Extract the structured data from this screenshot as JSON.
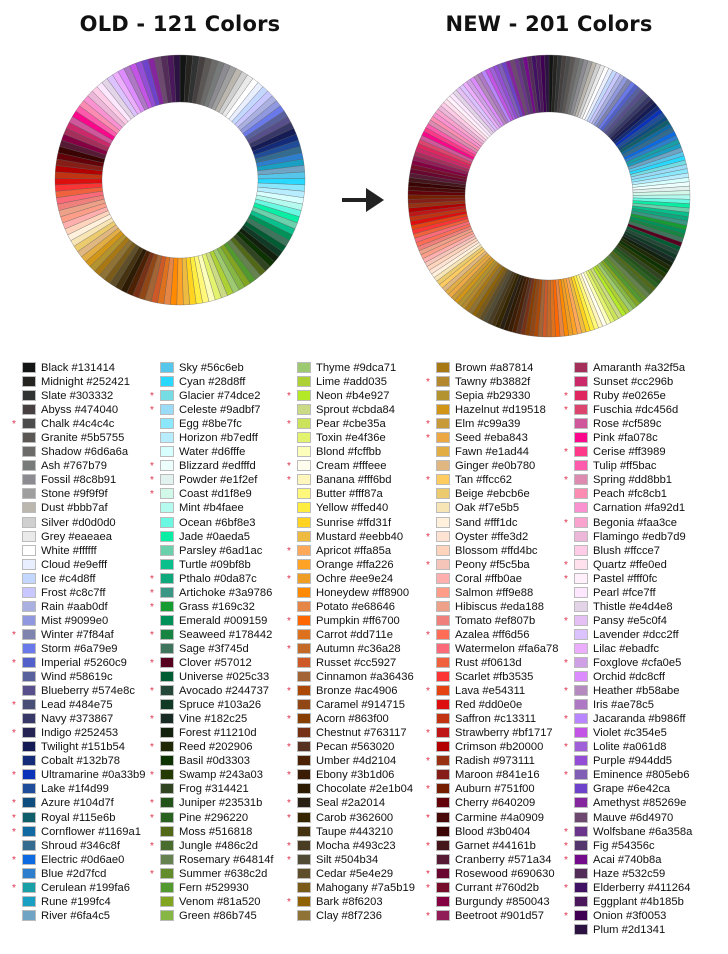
{
  "old_title": "OLD - 121 Colors",
  "new_title": "NEW - 201 Colors",
  "new_marker": "*",
  "marker_color": "#e0304a",
  "columns": [
    [
      [
        "Black",
        "#131414",
        0
      ],
      [
        "Midnight",
        "#252421",
        0
      ],
      [
        "Slate",
        "#303332",
        0
      ],
      [
        "Abyss",
        "#474040",
        0
      ],
      [
        "Chalk",
        "#4c4c4c",
        1
      ],
      [
        "Granite",
        "#5b5755",
        0
      ],
      [
        "Shadow",
        "#6d6a6a",
        0
      ],
      [
        "Ash",
        "#767b79",
        0
      ],
      [
        "Fossil",
        "#8c8b91",
        0
      ],
      [
        "Stone",
        "#9f9f9f",
        0
      ],
      [
        "Dust",
        "#bbb7af",
        0
      ],
      [
        "Silver",
        "#d0d0d0",
        0
      ],
      [
        "Grey",
        "#eaeaea",
        0
      ],
      [
        "White",
        "#ffffff",
        0
      ],
      [
        "Cloud",
        "#e9efff",
        0
      ],
      [
        "Ice",
        "#c4d8ff",
        0
      ],
      [
        "Frost",
        "#c8c7ff",
        0
      ],
      [
        "Rain",
        "#aab0df",
        0
      ],
      [
        "Mist",
        "#9099e0",
        0
      ],
      [
        "Winter",
        "#7f84af",
        1
      ],
      [
        "Storm",
        "#6a79e9",
        0
      ],
      [
        "Imperial",
        "#5260c9",
        1
      ],
      [
        "Wind",
        "#58619c",
        0
      ],
      [
        "Blueberry",
        "#574e8c",
        0
      ],
      [
        "Lead",
        "#484e75",
        1
      ],
      [
        "Navy",
        "#373867",
        0
      ],
      [
        "Indigo",
        "#252453",
        1
      ],
      [
        "Twilight",
        "#151b54",
        0
      ],
      [
        "Cobalt",
        "#132b78",
        0
      ],
      [
        "Ultramarine",
        "#0a33b9",
        1
      ],
      [
        "Lake",
        "#1f4d99",
        0
      ],
      [
        "Azure",
        "#104d7f",
        1
      ],
      [
        "Royal",
        "#115e6b",
        1
      ],
      [
        "Cornflower",
        "#1169a1",
        1
      ],
      [
        "Shroud",
        "#346c8f",
        0
      ],
      [
        "Electric",
        "#0d6ae0",
        1
      ],
      [
        "Blue",
        "#2d7fcd",
        0
      ],
      [
        "Cerulean",
        "#199fa6",
        1
      ],
      [
        "Rune",
        "#199fc4",
        0
      ],
      [
        "River",
        "#6fa4c5",
        0
      ]
    ],
    [
      [
        "Sky",
        "#56c6eb",
        0
      ],
      [
        "Cyan",
        "#28d8ff",
        0
      ],
      [
        "Glacier",
        "#74dce2",
        1
      ],
      [
        "Celeste",
        "#9adbf7",
        1
      ],
      [
        "Egg",
        "#8be7fc",
        0
      ],
      [
        "Horizon",
        "#b7edff",
        0
      ],
      [
        "Water",
        "#d6fffe",
        0
      ],
      [
        "Blizzard",
        "#edfffd",
        1
      ],
      [
        "Powder",
        "#e1f2ef",
        1
      ],
      [
        "Coast",
        "#d1f8e9",
        1
      ],
      [
        "Mint",
        "#b4faee",
        0
      ],
      [
        "Ocean",
        "#6bf8e3",
        0
      ],
      [
        "Jade",
        "#0aeda5",
        0
      ],
      [
        "Parsley",
        "#6ad1ac",
        0
      ],
      [
        "Turtle",
        "#09bf8b",
        0
      ],
      [
        "Pthalo",
        "#0da87c",
        1
      ],
      [
        "Artichoke",
        "#3a9786",
        1
      ],
      [
        "Grass",
        "#169c32",
        1
      ],
      [
        "Emerald",
        "#009159",
        0
      ],
      [
        "Seaweed",
        "#178442",
        1
      ],
      [
        "Sage",
        "#3f745d",
        0
      ],
      [
        "Clover",
        "#57012",
        1
      ],
      [
        "Universe",
        "#025c33",
        0
      ],
      [
        "Avocado",
        "#244737",
        1
      ],
      [
        "Spruce",
        "#103a26",
        0
      ],
      [
        "Vine",
        "#182c25",
        1
      ],
      [
        "Forest",
        "#11210d",
        0
      ],
      [
        "Reed",
        "#202906",
        1
      ],
      [
        "Basil",
        "#0d3303",
        0
      ],
      [
        "Swamp",
        "#243a03",
        1
      ],
      [
        "Frog",
        "#314421",
        0
      ],
      [
        "Juniper",
        "#23531b",
        1
      ],
      [
        "Pine",
        "#296220",
        1
      ],
      [
        "Moss",
        "#516818",
        0
      ],
      [
        "Jungle",
        "#486c2d",
        1
      ],
      [
        "Rosemary",
        "#64814f",
        0
      ],
      [
        "Summer",
        "#638c2d",
        1
      ],
      [
        "Fern",
        "#529930",
        0
      ],
      [
        "Venom",
        "#81a520",
        0
      ],
      [
        "Green",
        "#86b745",
        0
      ]
    ],
    [
      [
        "Thyme",
        "#9dca71",
        0
      ],
      [
        "Lime",
        "#add035",
        0
      ],
      [
        "Neon",
        "#b4e927",
        1
      ],
      [
        "Sprout",
        "#cbda84",
        0
      ],
      [
        "Pear",
        "#cbe35a",
        1
      ],
      [
        "Toxin",
        "#e4f36e",
        0
      ],
      [
        "Blond",
        "#fcffbb",
        0
      ],
      [
        "Cream",
        "#fffeee",
        1
      ],
      [
        "Banana",
        "#fff6bd",
        1
      ],
      [
        "Butter",
        "#fff87a",
        0
      ],
      [
        "Yellow",
        "#ffed40",
        0
      ],
      [
        "Sunrise",
        "#ffd31f",
        0
      ],
      [
        "Mustard",
        "#eebb40",
        0
      ],
      [
        "Apricot",
        "#ffa85a",
        1
      ],
      [
        "Orange",
        "#ffa226",
        0
      ],
      [
        "Ochre",
        "#ee9e24",
        1
      ],
      [
        "Honeydew",
        "#ff8900",
        0
      ],
      [
        "Potato",
        "#e68646",
        0
      ],
      [
        "Pumpkin",
        "#ff6700",
        1
      ],
      [
        "Carrot",
        "#dd711e",
        0
      ],
      [
        "Autumn",
        "#c36a28",
        1
      ],
      [
        "Russet",
        "#cc5927",
        0
      ],
      [
        "Cinnamon",
        "#a36436",
        0
      ],
      [
        "Bronze",
        "#ac4906",
        1
      ],
      [
        "Caramel",
        "#914715",
        0
      ],
      [
        "Acorn",
        "#863f00",
        1
      ],
      [
        "Chestnut",
        "#763117",
        0
      ],
      [
        "Pecan",
        "#563020",
        1
      ],
      [
        "Umber",
        "#4d2104",
        0
      ],
      [
        "Ebony",
        "#3b1d06",
        1
      ],
      [
        "Chocolate",
        "#2e1b04",
        0
      ],
      [
        "Seal",
        "#2a2014",
        1
      ],
      [
        "Carob",
        "#362600",
        1
      ],
      [
        "Taupe",
        "#443210",
        0
      ],
      [
        "Mocha",
        "#493c23",
        1
      ],
      [
        "Silt",
        "#504b34",
        1
      ],
      [
        "Cedar",
        "#5e4e29",
        0
      ],
      [
        "Mahogany",
        "#7a5b19",
        0
      ],
      [
        "Bark",
        "#8f6203",
        1
      ],
      [
        "Clay",
        "#8f7236",
        0
      ]
    ],
    [
      [
        "Brown",
        "#a87814",
        0
      ],
      [
        "Tawny",
        "#b3882f",
        1
      ],
      [
        "Sepia",
        "#b29330",
        0
      ],
      [
        "Hazelnut",
        "#d19518",
        0
      ],
      [
        "Elm",
        "#c99a39",
        1
      ],
      [
        "Seed",
        "#eba843",
        1
      ],
      [
        "Fawn",
        "#e1ad44",
        0
      ],
      [
        "Ginger",
        "#e0b780",
        0
      ],
      [
        "Tan",
        "#ffcc62",
        1
      ],
      [
        "Beige",
        "#ebcb6e",
        0
      ],
      [
        "Oak",
        "#f7e5b5",
        0
      ],
      [
        "Sand",
        "#fff1dc",
        0
      ],
      [
        "Oyster",
        "#ffe3d2",
        1
      ],
      [
        "Blossom",
        "#ffd4bc",
        0
      ],
      [
        "Peony",
        "#f5c5ba",
        1
      ],
      [
        "Coral",
        "#ffb0ae",
        0
      ],
      [
        "Salmon",
        "#ff9e88",
        0
      ],
      [
        "Hibiscus",
        "#eda188",
        0
      ],
      [
        "Tomato",
        "#ef807b",
        0
      ],
      [
        "Azalea",
        "#ff6d56",
        1
      ],
      [
        "Watermelon",
        "#fa6a78",
        0
      ],
      [
        "Rust",
        "#f0613d",
        0
      ],
      [
        "Scarlet",
        "#fb3535",
        0
      ],
      [
        "Lava",
        "#e54311",
        1
      ],
      [
        "Red",
        "#dd0e0e",
        0
      ],
      [
        "Saffron",
        "#c13311",
        0
      ],
      [
        "Strawberry",
        "#bf1717",
        1
      ],
      [
        "Crimson",
        "#b20000",
        0
      ],
      [
        "Radish",
        "#973111",
        1
      ],
      [
        "Maroon",
        "#841e16",
        0
      ],
      [
        "Auburn",
        "#751f00",
        1
      ],
      [
        "Cherry",
        "#640209",
        0
      ],
      [
        "Carmine",
        "#4a0909",
        1
      ],
      [
        "Blood",
        "#3b0404",
        0
      ],
      [
        "Garnet",
        "#44161b",
        1
      ],
      [
        "Cranberry",
        "#571a34",
        0
      ],
      [
        "Rosewood",
        "#690630",
        1
      ],
      [
        "Currant",
        "#760d2b",
        1
      ],
      [
        "Burgundy",
        "#850043",
        0
      ],
      [
        "Beetroot",
        "#901d57",
        1
      ]
    ],
    [
      [
        "Amaranth",
        "#a32f5a",
        0
      ],
      [
        "Sunset",
        "#cc296b",
        0
      ],
      [
        "Ruby",
        "#e0265e",
        1
      ],
      [
        "Fuschia",
        "#dc456d",
        1
      ],
      [
        "Rose",
        "#cf589c",
        0
      ],
      [
        "Pink",
        "#fa078c",
        0
      ],
      [
        "Cerise",
        "#ff3989",
        1
      ],
      [
        "Tulip",
        "#ff5bac",
        0
      ],
      [
        "Spring",
        "#dd8bb1",
        1
      ],
      [
        "Peach",
        "#fc8cb1",
        0
      ],
      [
        "Carnation",
        "#fa92d1",
        0
      ],
      [
        "Begonia",
        "#faa3ce",
        1
      ],
      [
        "Flamingo",
        "#edb7d9",
        0
      ],
      [
        "Blush",
        "#ffcce7",
        0
      ],
      [
        "Quartz",
        "#ffe0ed",
        1
      ],
      [
        "Pastel",
        "#fff0fc",
        1
      ],
      [
        "Pearl",
        "#fce7ff",
        0
      ],
      [
        "Thistle",
        "#e4d4e8",
        0
      ],
      [
        "Pansy",
        "#e5c0f4",
        1
      ],
      [
        "Lavender",
        "#dcc2ff",
        0
      ],
      [
        "Lilac",
        "#ebadfc",
        0
      ],
      [
        "Foxglove",
        "#cfa0e5",
        1
      ],
      [
        "Orchid",
        "#dc8cff",
        0
      ],
      [
        "Heather",
        "#b58abe",
        1
      ],
      [
        "Iris",
        "#ae78c5",
        0
      ],
      [
        "Jacaranda",
        "#b986ff",
        1
      ],
      [
        "Violet",
        "#c354e5",
        0
      ],
      [
        "Lolite",
        "#a061d8",
        1
      ],
      [
        "Purple",
        "#944dd5",
        0
      ],
      [
        "Eminence",
        "#805eb6",
        1
      ],
      [
        "Grape",
        "#6e42ca",
        0
      ],
      [
        "Amethyst",
        "#85269e",
        0
      ],
      [
        "Mauve",
        "#6d4970",
        0
      ],
      [
        "Wolfsbane",
        "#6a358a",
        1
      ],
      [
        "Fig",
        "#54356c",
        1
      ],
      [
        "Acai",
        "#740b8a",
        1
      ],
      [
        "Haze",
        "#532c59",
        0
      ],
      [
        "Elderberry",
        "#411264",
        1
      ],
      [
        "Eggplant",
        "#4b185b",
        0
      ],
      [
        "Onion",
        "#3f0053",
        1
      ],
      [
        "Plum",
        "#2d1341",
        0
      ]
    ]
  ]
}
